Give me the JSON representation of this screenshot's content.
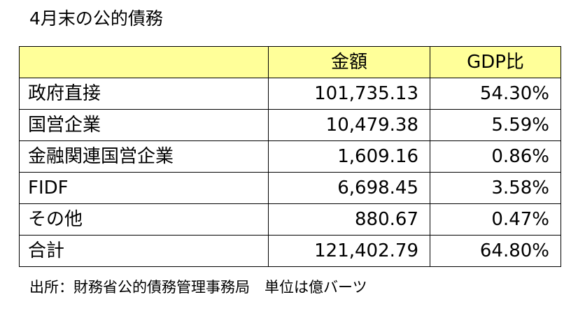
{
  "title": "4月末の公的債務",
  "table": {
    "headers": [
      "",
      "金額",
      "GDP比"
    ],
    "rows": [
      {
        "name": "政府直接",
        "amount": "101,735.13",
        "ratio": "54.30%"
      },
      {
        "name": "国営企業",
        "amount": "10,479.38",
        "ratio": "5.59%"
      },
      {
        "name": "金融関連国営企業",
        "amount": "1,609.16",
        "ratio": "0.86%"
      },
      {
        "name": "FIDF",
        "amount": "6,698.45",
        "ratio": "3.58%"
      },
      {
        "name": "その他",
        "amount": "880.67",
        "ratio": "0.47%"
      },
      {
        "name": "合計",
        "amount": "121,402.79",
        "ratio": "64.80%"
      }
    ]
  },
  "source": "出所：財務省公的債務管理事務局　単位は億バーツ",
  "colors": {
    "header_background": "#ffff99",
    "border": "#000000",
    "text": "#000000",
    "background": "#ffffff"
  }
}
